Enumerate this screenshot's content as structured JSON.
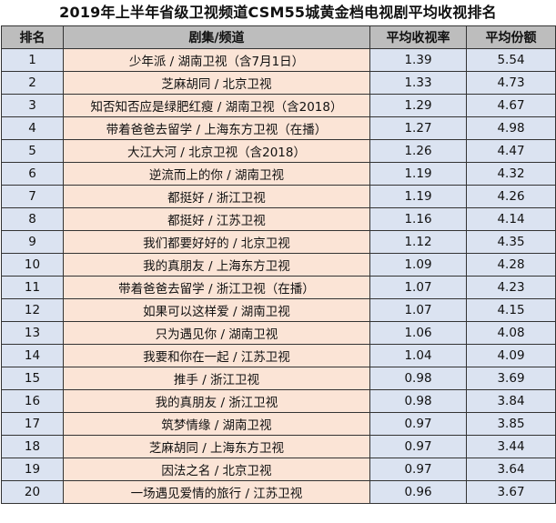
{
  "title": "2019年上半年省级卫视频道CSM55城黄金档电视剧平均收视排名",
  "columns": [
    "排名",
    "剧集/频道",
    "平均收视率",
    "平均份额"
  ],
  "rows": [
    {
      "rank": "1",
      "show": "少年派 / 湖南卫视（含7月1日）",
      "rating": "1.39",
      "share": "5.54"
    },
    {
      "rank": "2",
      "show": "芝麻胡同 / 北京卫视",
      "rating": "1.33",
      "share": "4.73"
    },
    {
      "rank": "3",
      "show": "知否知否应是绿肥红瘦 / 湖南卫视（含2018）",
      "rating": "1.29",
      "share": "4.67"
    },
    {
      "rank": "4",
      "show": "带着爸爸去留学 / 上海东方卫视（在播）",
      "rating": "1.27",
      "share": "4.98"
    },
    {
      "rank": "5",
      "show": "大江大河 / 北京卫视（含2018）",
      "rating": "1.26",
      "share": "4.47"
    },
    {
      "rank": "6",
      "show": "逆流而上的你 / 湖南卫视",
      "rating": "1.19",
      "share": "4.32"
    },
    {
      "rank": "7",
      "show": "都挺好 / 浙江卫视",
      "rating": "1.19",
      "share": "4.26"
    },
    {
      "rank": "8",
      "show": "都挺好 / 江苏卫视",
      "rating": "1.16",
      "share": "4.14"
    },
    {
      "rank": "9",
      "show": "我们都要好好的 / 北京卫视",
      "rating": "1.12",
      "share": "4.35"
    },
    {
      "rank": "10",
      "show": "我的真朋友 / 上海东方卫视",
      "rating": "1.09",
      "share": "4.28"
    },
    {
      "rank": "11",
      "show": "带着爸爸去留学 / 浙江卫视（在播）",
      "rating": "1.07",
      "share": "4.23"
    },
    {
      "rank": "12",
      "show": "如果可以这样爱 / 湖南卫视",
      "rating": "1.07",
      "share": "4.15"
    },
    {
      "rank": "13",
      "show": "只为遇见你 / 湖南卫视",
      "rating": "1.06",
      "share": "4.08"
    },
    {
      "rank": "14",
      "show": "我要和你在一起 / 江苏卫视",
      "rating": "1.04",
      "share": "4.09"
    },
    {
      "rank": "15",
      "show": "推手 / 浙江卫视",
      "rating": "0.98",
      "share": "3.69"
    },
    {
      "rank": "16",
      "show": "我的真朋友 / 浙江卫视",
      "rating": "0.98",
      "share": "3.84"
    },
    {
      "rank": "17",
      "show": "筑梦情缘 / 湖南卫视",
      "rating": "0.97",
      "share": "3.85"
    },
    {
      "rank": "18",
      "show": "芝麻胡同 / 上海东方卫视",
      "rating": "0.97",
      "share": "3.44"
    },
    {
      "rank": "19",
      "show": "因法之名 / 北京卫视",
      "rating": "0.97",
      "share": "3.64"
    },
    {
      "rank": "20",
      "show": "一场遇见爱情的旅行 / 江苏卫视",
      "rating": "0.96",
      "share": "3.67"
    }
  ],
  "colors": {
    "header_bg": "#bdbdbd",
    "rank_col_bg": "#dbe3f1",
    "show_col_bg": "#fbe4d6",
    "grid_line": "#333333"
  }
}
